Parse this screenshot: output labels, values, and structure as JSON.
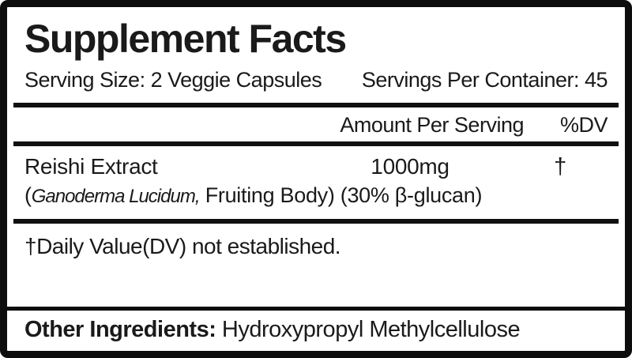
{
  "label": {
    "title": "Supplement Facts",
    "serving_size": "Serving Size: 2 Veggie Capsules",
    "servings_per_container": "Servings Per Container: 45",
    "header": {
      "amount_column": "Amount Per Serving",
      "dv_column": "%DV"
    },
    "ingredients": [
      {
        "name": "Reishi Extract",
        "detail_open_paren": "(",
        "detail_latin": "Ganoderma Lucidum,",
        "detail_rest": " Fruiting Body) (30% β-glucan)",
        "amount": "1000mg",
        "dv": "†"
      }
    ],
    "footnote": "†Daily Value(DV) not established.",
    "other_ingredients": {
      "label": "Other Ingredients:",
      "value": " Hydroxypropyl Methylcellulose"
    },
    "colors": {
      "text": "#1a1a1a",
      "border": "#0d0d0d",
      "background": "#ffffff"
    }
  }
}
